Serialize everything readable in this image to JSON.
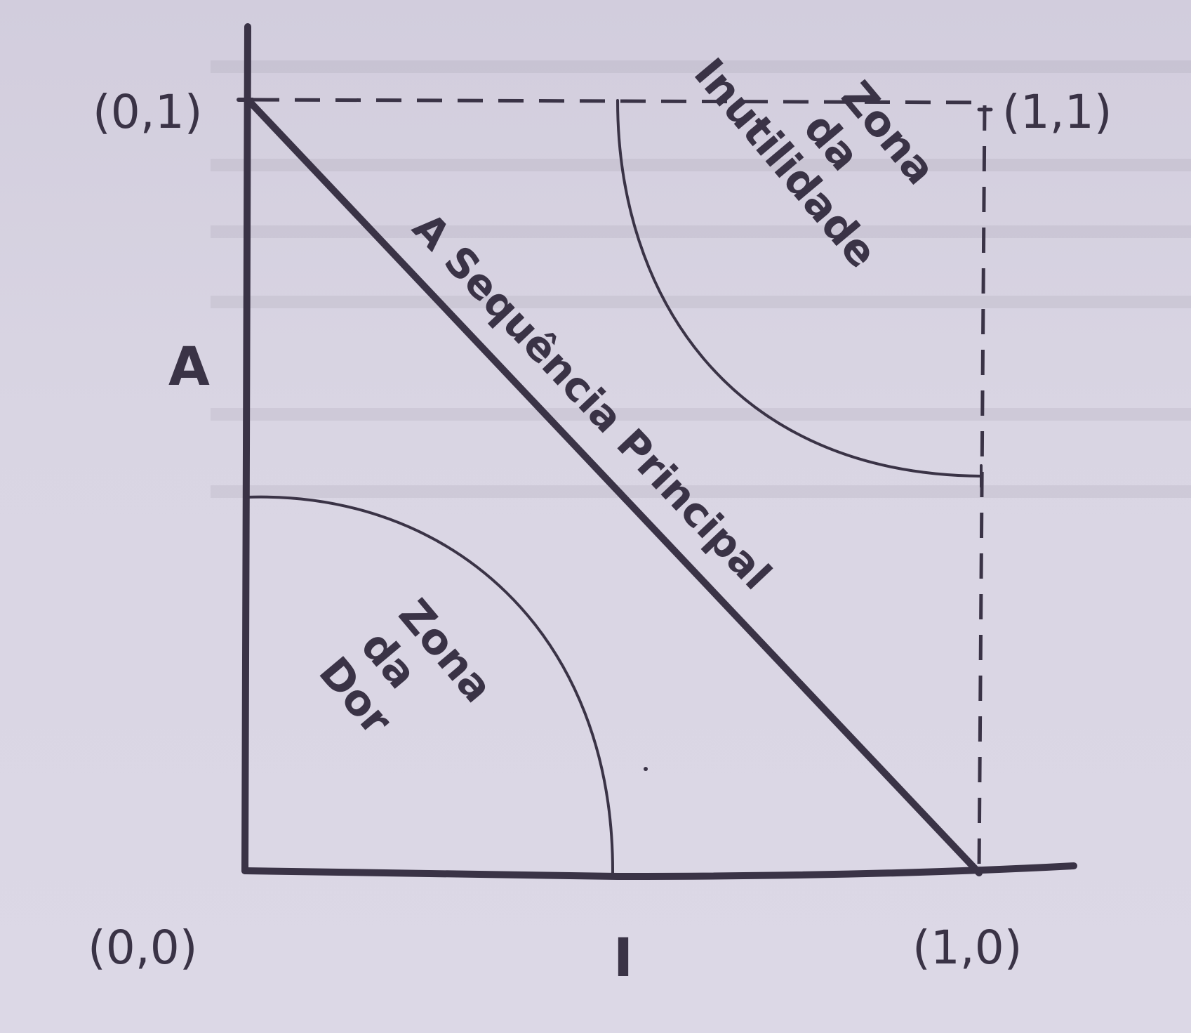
{
  "diagram": {
    "corners": {
      "top_left": "(0,1)",
      "top_right": "(1,1)",
      "bottom_left": "(0,0)",
      "bottom_right": "(1,0)"
    },
    "axes": {
      "y_label": "A",
      "x_label": "I"
    },
    "main_sequence_label": "A Sequência Principal",
    "zone_uselessness": [
      "Zona",
      "da",
      "Inutilidade"
    ],
    "zone_pain": [
      "Zona",
      "da",
      "Dor"
    ]
  }
}
